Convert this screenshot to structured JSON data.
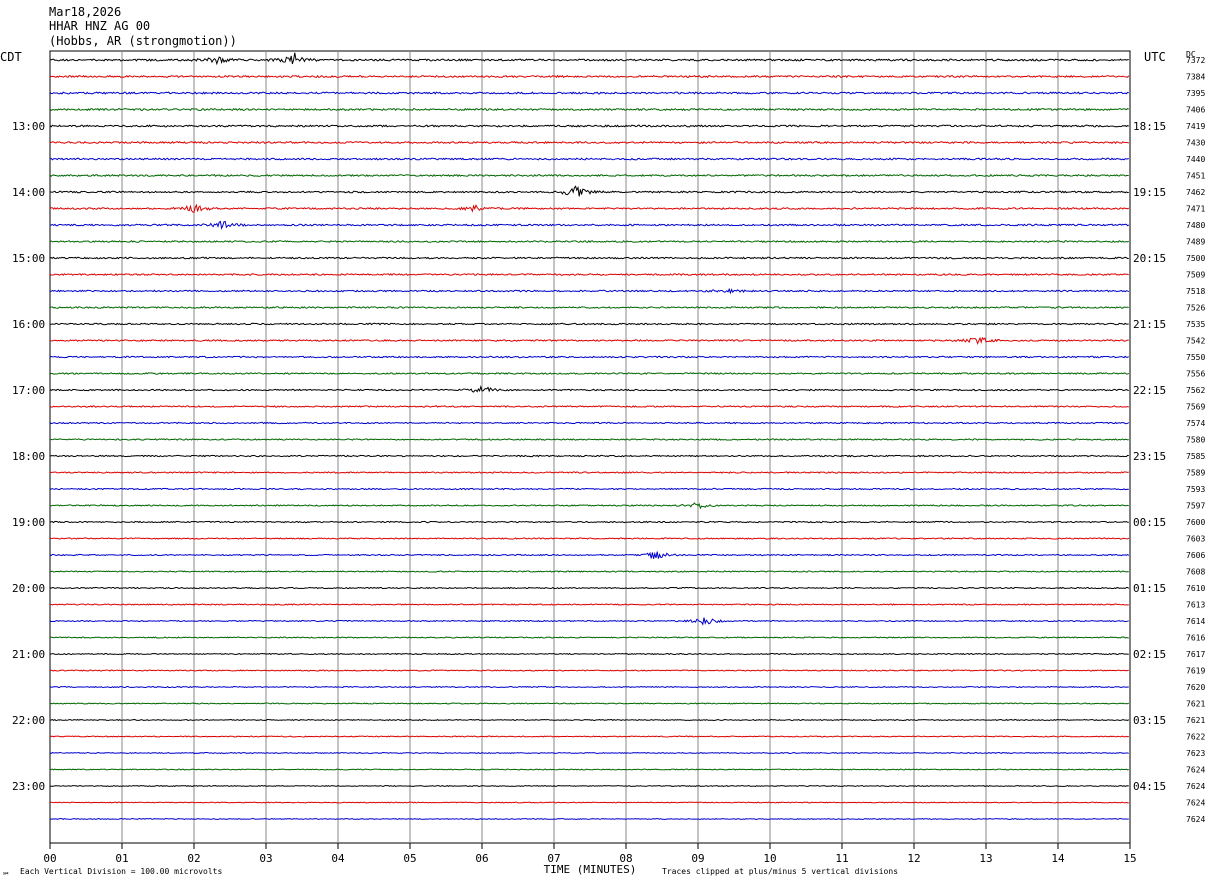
{
  "header": {
    "date": "Mar18,2026",
    "station": "HHAR HNZ AG 00",
    "location": "(Hobbs, AR (strongmotion))"
  },
  "left_zone": "CDT",
  "right_zone": "UTC",
  "dc_label": "DC",
  "footer": {
    "scale_note": "Each Vertical Division =  100.00 microvolts",
    "clip_note": "Traces clipped at plus/minus 5 vertical divisions",
    "corner_mark": "℠"
  },
  "colors": [
    "#000000",
    "#dd0000",
    "#0000cc",
    "#006600"
  ],
  "chart_data": {
    "type": "line",
    "xlabel": "TIME (MINUTES)",
    "x_ticks": [
      "00",
      "01",
      "02",
      "03",
      "04",
      "05",
      "06",
      "07",
      "08",
      "09",
      "10",
      "11",
      "12",
      "13",
      "14",
      "15"
    ],
    "xlim": [
      0,
      15
    ],
    "left_hour_labels": [
      "13:00",
      "14:00",
      "15:00",
      "16:00",
      "17:00",
      "18:00",
      "19:00",
      "20:00",
      "21:00",
      "22:00",
      "23:00"
    ],
    "right_hour_labels": [
      "18:15",
      "19:15",
      "20:15",
      "21:15",
      "22:15",
      "23:15",
      "00:15",
      "01:15",
      "02:15",
      "03:15",
      "04:15"
    ],
    "dc_offsets": [
      7372,
      7384,
      7395,
      7406,
      7419,
      7430,
      7440,
      7451,
      7462,
      7471,
      7480,
      7489,
      7500,
      7509,
      7518,
      7526,
      7535,
      7542,
      7550,
      7556,
      7562,
      7569,
      7574,
      7580,
      7585,
      7589,
      7593,
      7597,
      7600,
      7603,
      7606,
      7608,
      7610,
      7613,
      7614,
      7616,
      7617,
      7619,
      7620,
      7621,
      7621,
      7622,
      7623,
      7624,
      7624,
      7624,
      7624
    ],
    "events": [
      {
        "trace": 0,
        "minute": 3.4,
        "amplitude": 7
      },
      {
        "trace": 0,
        "minute": 2.3,
        "amplitude": 4
      },
      {
        "trace": 8,
        "minute": 7.3,
        "amplitude": 6
      },
      {
        "trace": 9,
        "minute": 2.0,
        "amplitude": 4
      },
      {
        "trace": 9,
        "minute": 5.9,
        "amplitude": 3
      },
      {
        "trace": 10,
        "minute": 2.4,
        "amplitude": 4
      },
      {
        "trace": 14,
        "minute": 9.4,
        "amplitude": 3
      },
      {
        "trace": 17,
        "minute": 12.9,
        "amplitude": 4
      },
      {
        "trace": 20,
        "minute": 6.0,
        "amplitude": 4
      },
      {
        "trace": 30,
        "minute": 8.4,
        "amplitude": 5
      },
      {
        "trace": 34,
        "minute": 9.1,
        "amplitude": 4
      },
      {
        "trace": 27,
        "minute": 9.0,
        "amplitude": 3
      }
    ]
  }
}
